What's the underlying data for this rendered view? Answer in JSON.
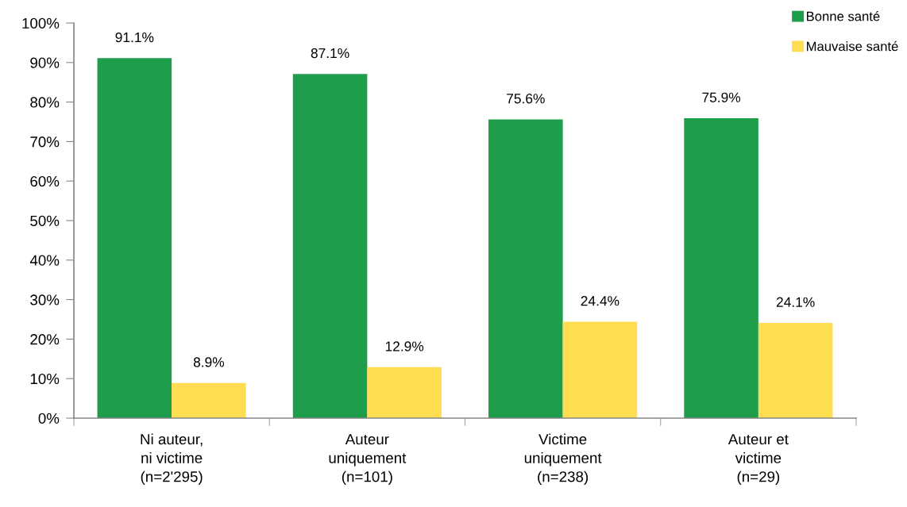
{
  "chart_data": {
    "type": "bar",
    "categories": [
      "Ni auteur,\nni victime\n(n=2'295)",
      "Auteur\nuniquement\n(n=101)",
      "Victime\nuniquement\n(n=238)",
      "Auteur et\nvictime\n(n=29)"
    ],
    "series": [
      {
        "name": "Bonne santé",
        "color": "#1e9d4b",
        "values": [
          91.1,
          87.1,
          75.6,
          75.9
        ],
        "value_labels": [
          "91.1%",
          "87.1%",
          "75.6%",
          "75.9%"
        ]
      },
      {
        "name": "Mauvaise santé",
        "color": "#ffdd50",
        "values": [
          8.9,
          12.9,
          24.4,
          24.1
        ],
        "value_labels": [
          "8.9%",
          "12.9%",
          "24.4%",
          "24.1%"
        ]
      }
    ],
    "ylim": [
      0,
      100
    ],
    "yticks": [
      {
        "value": 0,
        "label": "0%"
      },
      {
        "value": 10,
        "label": "10%"
      },
      {
        "value": 20,
        "label": "20%"
      },
      {
        "value": 30,
        "label": "30%"
      },
      {
        "value": 40,
        "label": "40%"
      },
      {
        "value": 50,
        "label": "50%"
      },
      {
        "value": 60,
        "label": "60%"
      },
      {
        "value": 70,
        "label": "70%"
      },
      {
        "value": 80,
        "label": "80%"
      },
      {
        "value": 90,
        "label": "90%"
      },
      {
        "value": 100,
        "label": "100%"
      }
    ],
    "legend": "top right"
  }
}
